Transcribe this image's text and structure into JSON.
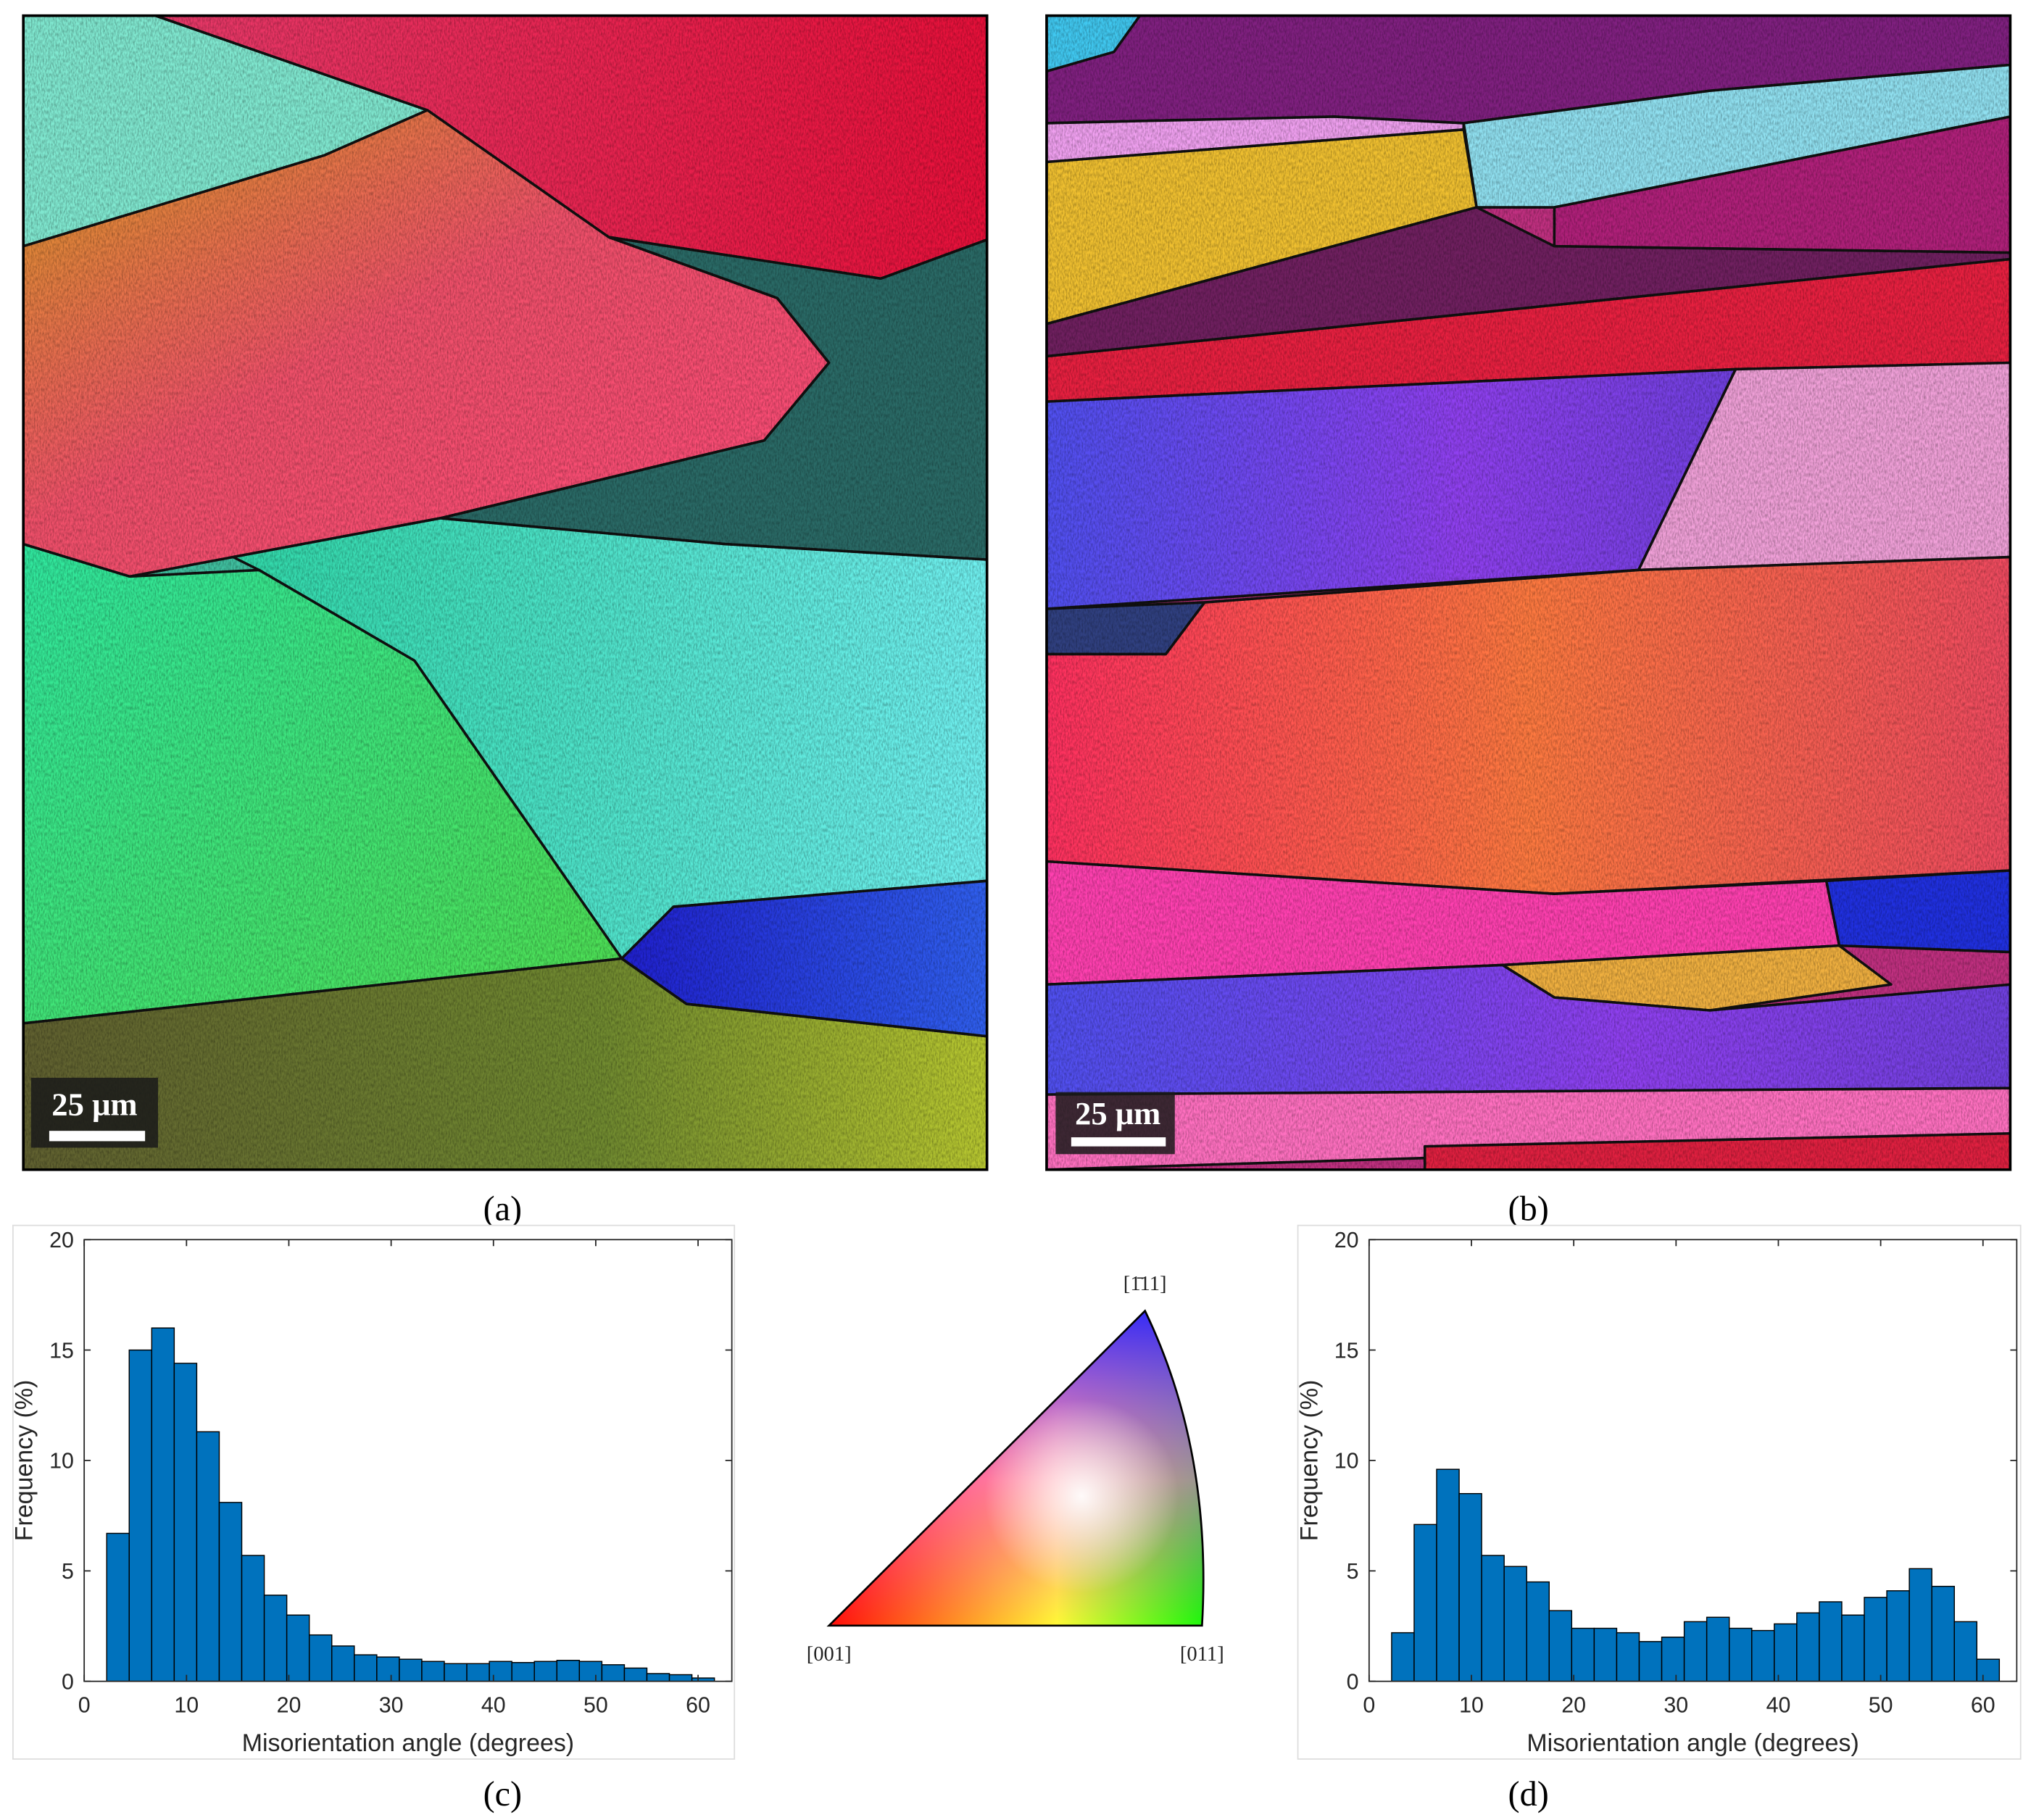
{
  "figure": {
    "panel_labels": [
      "(a)",
      "(b)",
      "(c)",
      "(d)"
    ],
    "scale_bars": [
      "25 μm",
      "25 μm"
    ],
    "ipf_labels": [
      "[001]",
      "[011]",
      "[1̄11]"
    ]
  },
  "chart_data": [
    {
      "type": "histogram",
      "xlabel": "Misorientation angle (degrees)",
      "ylabel": "Frequency (%)",
      "color": "#0072bd",
      "bins": [
        2.2,
        4.4,
        6.6,
        8.8,
        11,
        13.2,
        15.4,
        17.6,
        19.8,
        22,
        24.2,
        26.4,
        28.6,
        30.8,
        33,
        35.2,
        37.4,
        39.6,
        41.8,
        44,
        46.2,
        48.4,
        50.6,
        52.8,
        55,
        57.2,
        59.4,
        61.6
      ],
      "values": [
        6.7,
        15,
        16,
        14.4,
        11.3,
        8.1,
        5.7,
        3.9,
        3.0,
        2.1,
        1.6,
        1.2,
        1.1,
        1.0,
        0.9,
        0.8,
        0.8,
        0.9,
        0.85,
        0.9,
        0.95,
        0.9,
        0.75,
        0.6,
        0.35,
        0.3,
        0.15
      ],
      "xlim": [
        0,
        63.3
      ],
      "ylim": [
        0,
        20
      ],
      "xticks": [
        0,
        10,
        20,
        30,
        40,
        50,
        60
      ],
      "yticks": [
        0,
        5,
        10,
        15,
        20
      ]
    },
    {
      "type": "histogram",
      "xlabel": "Misorientation angle (degrees)",
      "ylabel": "Frequency (%)",
      "color": "#0072bd",
      "bins": [
        2.2,
        4.4,
        6.6,
        8.8,
        11,
        13.2,
        15.4,
        17.6,
        19.8,
        22,
        24.2,
        26.4,
        28.6,
        30.8,
        33,
        35.2,
        37.4,
        39.6,
        41.8,
        44,
        46.2,
        48.4,
        50.6,
        52.8,
        55,
        57.2,
        59.4,
        61.6
      ],
      "values": [
        2.2,
        7.1,
        9.6,
        8.5,
        5.7,
        5.2,
        4.5,
        3.2,
        2.4,
        2.4,
        2.2,
        1.8,
        2.0,
        2.7,
        2.9,
        2.4,
        2.3,
        2.6,
        3.1,
        3.6,
        3.0,
        3.8,
        4.1,
        5.1,
        4.3,
        2.7,
        1.0
      ],
      "xlim": [
        0,
        63.3
      ],
      "ylim": [
        0,
        20
      ],
      "xticks": [
        0,
        10,
        20,
        30,
        40,
        50,
        60
      ],
      "yticks": [
        0,
        5,
        10,
        15,
        20
      ]
    }
  ]
}
